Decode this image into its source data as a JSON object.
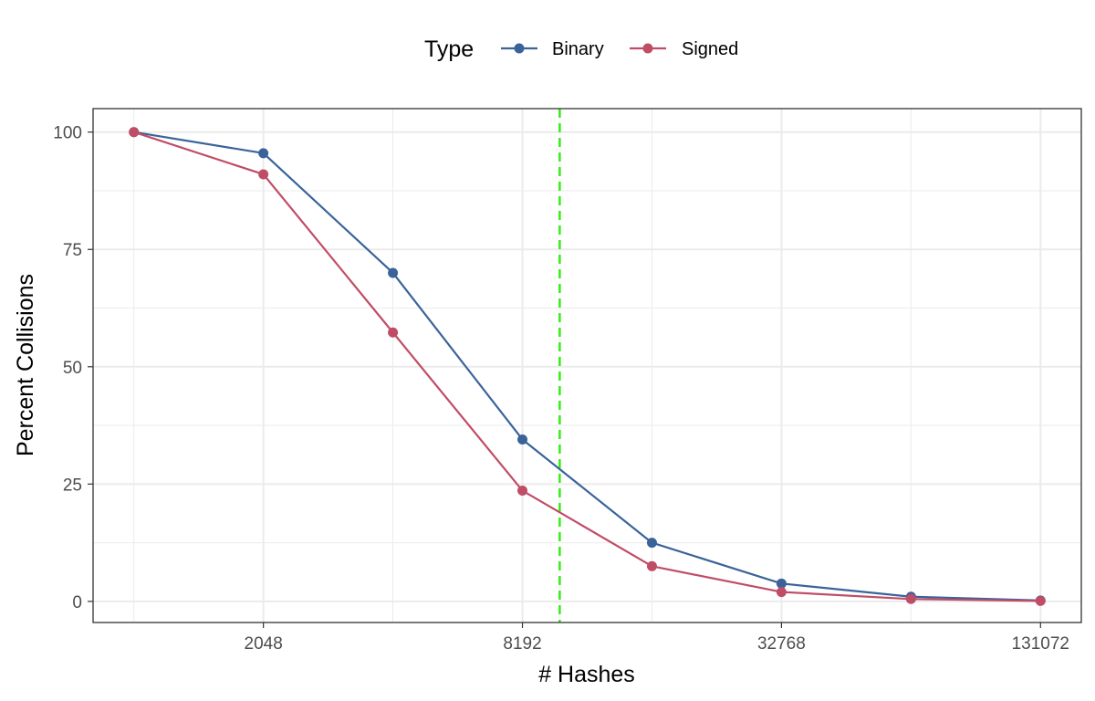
{
  "chart_data": {
    "type": "line",
    "xlabel": "# Hashes",
    "ylabel": "Percent Collisions",
    "x_scale": "log2",
    "x": [
      1024,
      2048,
      4096,
      8192,
      16384,
      32768,
      65536,
      131072
    ],
    "x_ticks": [
      "2048",
      "8192",
      "32768",
      "131072"
    ],
    "y_ticks": [
      "0",
      "25",
      "50",
      "75",
      "100"
    ],
    "ylim": [
      -4.5,
      105
    ],
    "grid": true,
    "legend": {
      "title": "Type",
      "position": "top"
    },
    "series": [
      {
        "name": "Binary",
        "color": "#3a6399",
        "values": [
          100,
          95.5,
          70,
          34.5,
          12.5,
          3.8,
          1.0,
          0.2
        ]
      },
      {
        "name": "Signed",
        "color": "#c04d66",
        "values": [
          100,
          91,
          57.3,
          23.6,
          7.5,
          2.0,
          0.5,
          0.1
        ]
      }
    ],
    "reference_line": {
      "axis": "x",
      "value": 10000,
      "color": "#33ee11",
      "style": "dashed"
    }
  }
}
